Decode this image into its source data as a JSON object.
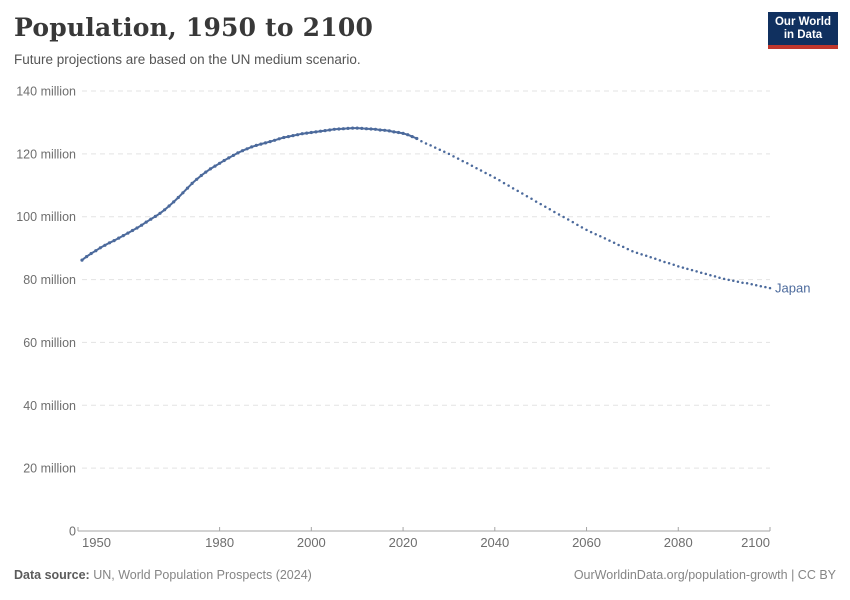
{
  "header": {
    "title": "Population, 1950 to 2100",
    "subtitle": "Future projections are based on the UN medium scenario."
  },
  "logo": {
    "line1": "Our World",
    "line2": "in Data"
  },
  "chart_data": {
    "type": "line",
    "title": "Population, 1950 to 2100",
    "subtitle": "Future projections are based on the UN medium scenario.",
    "entity_label": "Japan",
    "unit": "million",
    "x_domain": [
      1950,
      2100
    ],
    "y_domain": [
      0,
      140
    ],
    "grid": true,
    "legend_position": "end-of-line-label",
    "x_ticks": [
      1950,
      1980,
      2000,
      2020,
      2040,
      2060,
      2080,
      2100
    ],
    "y_ticks": [
      {
        "value": 0,
        "label": "0"
      },
      {
        "value": 20,
        "label": "20 million"
      },
      {
        "value": 40,
        "label": "40 million"
      },
      {
        "value": 60,
        "label": "60 million"
      },
      {
        "value": 80,
        "label": "80 million"
      },
      {
        "value": 100,
        "label": "100 million"
      },
      {
        "value": 120,
        "label": "120 million"
      },
      {
        "value": 140,
        "label": "140 million"
      }
    ],
    "series": [
      {
        "name": "Japan (historical)",
        "style": "solid",
        "color": "#4c6a9c",
        "points": [
          [
            1950,
            86.2
          ],
          [
            1951,
            87.3
          ],
          [
            1952,
            88.3
          ],
          [
            1953,
            89.2
          ],
          [
            1954,
            90.1
          ],
          [
            1955,
            90.9
          ],
          [
            1956,
            91.7
          ],
          [
            1957,
            92.4
          ],
          [
            1958,
            93.2
          ],
          [
            1959,
            94.0
          ],
          [
            1960,
            94.8
          ],
          [
            1961,
            95.6
          ],
          [
            1962,
            96.4
          ],
          [
            1963,
            97.3
          ],
          [
            1964,
            98.3
          ],
          [
            1965,
            99.2
          ],
          [
            1966,
            100.1
          ],
          [
            1967,
            101.1
          ],
          [
            1968,
            102.2
          ],
          [
            1969,
            103.4
          ],
          [
            1970,
            104.7
          ],
          [
            1971,
            106.1
          ],
          [
            1972,
            107.6
          ],
          [
            1973,
            109.1
          ],
          [
            1974,
            110.6
          ],
          [
            1975,
            111.9
          ],
          [
            1976,
            113.1
          ],
          [
            1977,
            114.2
          ],
          [
            1978,
            115.2
          ],
          [
            1979,
            116.1
          ],
          [
            1980,
            117.0
          ],
          [
            1981,
            117.9
          ],
          [
            1982,
            118.7
          ],
          [
            1983,
            119.5
          ],
          [
            1984,
            120.3
          ],
          [
            1985,
            121.0
          ],
          [
            1986,
            121.6
          ],
          [
            1987,
            122.2
          ],
          [
            1988,
            122.7
          ],
          [
            1989,
            123.1
          ],
          [
            1990,
            123.5
          ],
          [
            1991,
            123.9
          ],
          [
            1992,
            124.3
          ],
          [
            1993,
            124.8
          ],
          [
            1994,
            125.2
          ],
          [
            1995,
            125.5
          ],
          [
            1996,
            125.8
          ],
          [
            1997,
            126.1
          ],
          [
            1998,
            126.4
          ],
          [
            1999,
            126.6
          ],
          [
            2000,
            126.8
          ],
          [
            2001,
            127.0
          ],
          [
            2002,
            127.2
          ],
          [
            2003,
            127.4
          ],
          [
            2004,
            127.6
          ],
          [
            2005,
            127.8
          ],
          [
            2006,
            127.9
          ],
          [
            2007,
            128.0
          ],
          [
            2008,
            128.1
          ],
          [
            2009,
            128.2
          ],
          [
            2010,
            128.2
          ],
          [
            2011,
            128.1
          ],
          [
            2012,
            128.0
          ],
          [
            2013,
            127.9
          ],
          [
            2014,
            127.8
          ],
          [
            2015,
            127.6
          ],
          [
            2016,
            127.5
          ],
          [
            2017,
            127.3
          ],
          [
            2018,
            127.0
          ],
          [
            2019,
            126.8
          ],
          [
            2020,
            126.5
          ],
          [
            2021,
            126.1
          ],
          [
            2022,
            125.5
          ],
          [
            2023,
            124.9
          ]
        ]
      },
      {
        "name": "Japan (UN medium projection)",
        "style": "dotted",
        "color": "#4c6a9c",
        "points": [
          [
            2024,
            124.0
          ],
          [
            2025,
            123.3
          ],
          [
            2026,
            122.7
          ],
          [
            2027,
            122.0
          ],
          [
            2028,
            121.3
          ],
          [
            2029,
            120.7
          ],
          [
            2030,
            120.0
          ],
          [
            2031,
            119.2
          ],
          [
            2032,
            118.5
          ],
          [
            2033,
            117.7
          ],
          [
            2034,
            117.0
          ],
          [
            2035,
            116.2
          ],
          [
            2036,
            115.4
          ],
          [
            2037,
            114.7
          ],
          [
            2038,
            113.9
          ],
          [
            2039,
            113.2
          ],
          [
            2040,
            112.4
          ],
          [
            2041,
            111.6
          ],
          [
            2042,
            110.7
          ],
          [
            2043,
            109.9
          ],
          [
            2044,
            109.0
          ],
          [
            2045,
            108.2
          ],
          [
            2046,
            107.4
          ],
          [
            2047,
            106.5
          ],
          [
            2048,
            105.7
          ],
          [
            2049,
            104.8
          ],
          [
            2050,
            104.0
          ],
          [
            2051,
            103.2
          ],
          [
            2052,
            102.4
          ],
          [
            2053,
            101.5
          ],
          [
            2054,
            100.7
          ],
          [
            2055,
            99.9
          ],
          [
            2056,
            99.1
          ],
          [
            2057,
            98.3
          ],
          [
            2058,
            97.4
          ],
          [
            2059,
            96.6
          ],
          [
            2060,
            95.8
          ],
          [
            2061,
            95.1
          ],
          [
            2062,
            94.4
          ],
          [
            2063,
            93.8
          ],
          [
            2064,
            93.1
          ],
          [
            2065,
            92.4
          ],
          [
            2066,
            91.7
          ],
          [
            2067,
            91.0
          ],
          [
            2068,
            90.4
          ],
          [
            2069,
            89.7
          ],
          [
            2070,
            89.0
          ],
          [
            2071,
            88.5
          ],
          [
            2072,
            88.0
          ],
          [
            2073,
            87.6
          ],
          [
            2074,
            87.1
          ],
          [
            2075,
            86.6
          ],
          [
            2076,
            86.1
          ],
          [
            2077,
            85.6
          ],
          [
            2078,
            85.2
          ],
          [
            2079,
            84.7
          ],
          [
            2080,
            84.2
          ],
          [
            2081,
            83.8
          ],
          [
            2082,
            83.4
          ],
          [
            2083,
            83.0
          ],
          [
            2084,
            82.6
          ],
          [
            2085,
            82.2
          ],
          [
            2086,
            81.8
          ],
          [
            2087,
            81.4
          ],
          [
            2088,
            81.0
          ],
          [
            2089,
            80.6
          ],
          [
            2090,
            80.2
          ],
          [
            2091,
            79.9
          ],
          [
            2092,
            79.6
          ],
          [
            2093,
            79.3
          ],
          [
            2094,
            79.0
          ],
          [
            2095,
            78.8
          ],
          [
            2096,
            78.5
          ],
          [
            2097,
            78.2
          ],
          [
            2098,
            77.9
          ],
          [
            2099,
            77.6
          ],
          [
            2100,
            77.3
          ]
        ]
      }
    ]
  },
  "footer": {
    "datasource_label": "Data source:",
    "datasource_value": " UN, World Population Prospects (2024)",
    "attribution": "OurWorldinData.org/population-growth | CC BY"
  },
  "colors": {
    "line": "#4c6a9c",
    "grid": "#e3e3e3",
    "axis": "#a5a5a5",
    "tick_text": "#6e6e6e",
    "logo_bg": "#10305f",
    "logo_underline": "#c0372d"
  }
}
